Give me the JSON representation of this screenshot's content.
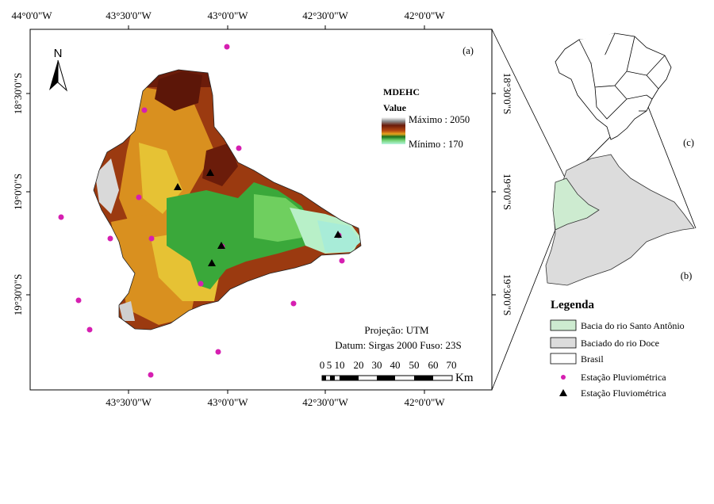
{
  "map_main": {
    "panel_label": "(a)",
    "north_label": "N",
    "top_lon_labels": [
      "44°0'0\"W",
      "43°30'0\"W",
      "43°0'0\"W",
      "42°30'0\"W",
      "42°0'0\"W"
    ],
    "bottom_lon_labels": [
      "43°30'0\"W",
      "43°0'0\"W",
      "42°30'0\"W",
      "42°0'0\"W"
    ],
    "left_lat_labels": [
      "18°30'0\"S",
      "19°0'0\"S",
      "19°30'0\"S"
    ],
    "right_lat_labels": [
      "18°30'0\"S",
      "19°0'0\"S",
      "19°30'0\"S"
    ],
    "elevation_legend": {
      "title": "MDEHC",
      "subtitle": "Value",
      "max_label": "Máximo : 2050",
      "min_label": "Mínimo : 170",
      "max_value": 2050,
      "min_value": 170
    },
    "projection_text": "Projeção: UTM",
    "datum_text": "Datum: Sirgas 2000 Fuso: 23S",
    "scale_labels": [
      "0",
      "5",
      "10",
      "20",
      "30",
      "40",
      "50",
      "60",
      "70"
    ],
    "scale_unit": "Km"
  },
  "inset_brazil": {
    "panel_label": "(c)"
  },
  "inset_doce": {
    "panel_label": "(b)"
  },
  "legend": {
    "title": "Legenda",
    "items": [
      {
        "label": "Bacia do rio Santo Antônio",
        "color": "#cdebd0",
        "symbol": "box"
      },
      {
        "label": "Baciado do rio Doce",
        "color": "#dcdcdc",
        "symbol": "box"
      },
      {
        "label": "Brasil",
        "color": "#ffffff",
        "symbol": "box"
      },
      {
        "label": "Estação Pluviométrica",
        "color": "#d61fb1",
        "symbol": "dot"
      },
      {
        "label": "Estação Fluviométrica",
        "color": "#000000",
        "symbol": "triangle"
      }
    ]
  },
  "colors": {
    "dark_brown": "#6b1c0a",
    "brown": "#9b3a10",
    "orange": "#d9901f",
    "yellow": "#e6c234",
    "green": "#3aa83a",
    "light_green": "#b8f0c8",
    "cyan": "#a8ecd8",
    "rain_station": "#d61fb1",
    "flow_station": "#000000"
  }
}
